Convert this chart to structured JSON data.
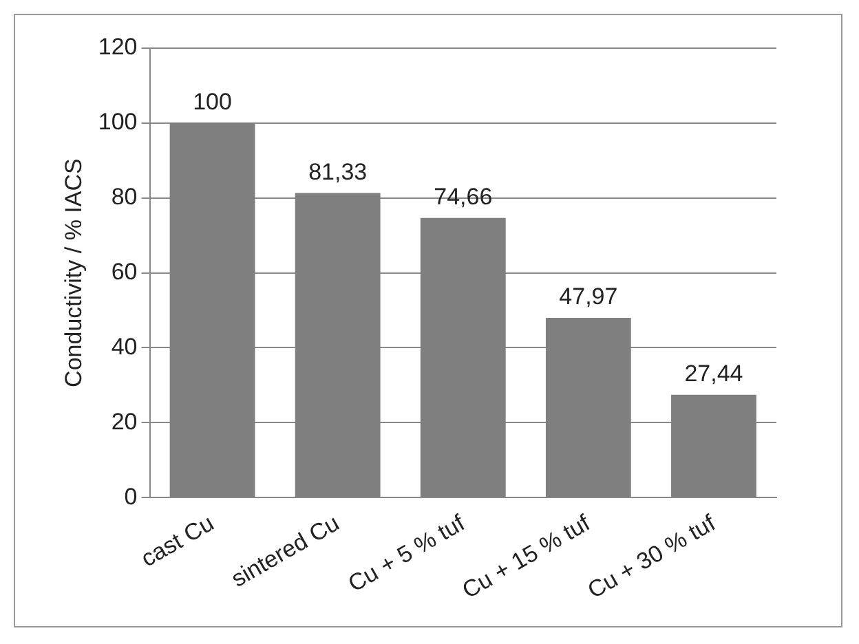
{
  "chart_data": {
    "type": "bar",
    "ylabel": "Conductivity / % IACS",
    "categories": [
      "cast Cu",
      "sintered Cu",
      "Cu + 5 % tuf",
      "Cu + 15 % tuf",
      "Cu + 30 % tuf"
    ],
    "values": [
      100,
      81.33,
      74.66,
      47.97,
      27.44
    ],
    "value_labels": [
      "100",
      "81,33",
      "74,66",
      "47,97",
      "27,44"
    ],
    "color": "#7f7f7f",
    "ylim": [
      0,
      120
    ],
    "yticks": [
      0,
      20,
      40,
      60,
      80,
      100,
      120
    ],
    "grid": "y",
    "legend": false
  }
}
